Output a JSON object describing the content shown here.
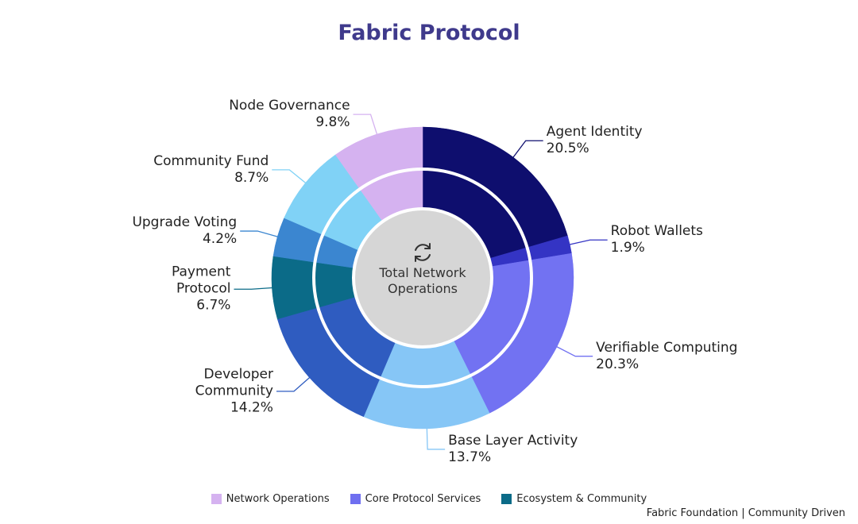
{
  "chart_data": {
    "type": "donut",
    "title": "Fabric Protocol",
    "center_label": "Total Network Operations",
    "categories": [
      "Agent Identity",
      "Robot Wallets",
      "Verifiable Computing",
      "Base Layer Activity",
      "Developer Community",
      "Payment Protocol",
      "Upgrade Voting",
      "Community Fund",
      "Node Governance"
    ],
    "values": [
      20.5,
      1.9,
      20.3,
      13.7,
      14.2,
      6.7,
      4.2,
      8.7,
      9.8
    ],
    "value_labels": [
      "20.5%",
      "1.9%",
      "20.3%",
      "13.7%",
      "14.2%",
      "6.7%",
      "4.2%",
      "8.7%",
      "9.8%"
    ],
    "colors": [
      "#0e0e6e",
      "#3434c4",
      "#7272f2",
      "#86c6f6",
      "#2f5cc0",
      "#0b6b88",
      "#3b86d0",
      "#80d2f6",
      "#d5b2f0"
    ],
    "legend": [
      {
        "name": "Network Operations",
        "color": "#d5b2f0"
      },
      {
        "name": "Core Protocol Services",
        "color": "#6f6ff0"
      },
      {
        "name": "Ecosystem & Community",
        "color": "#0b6b88"
      }
    ],
    "footer": "Fabric Foundation | Community Driven"
  }
}
